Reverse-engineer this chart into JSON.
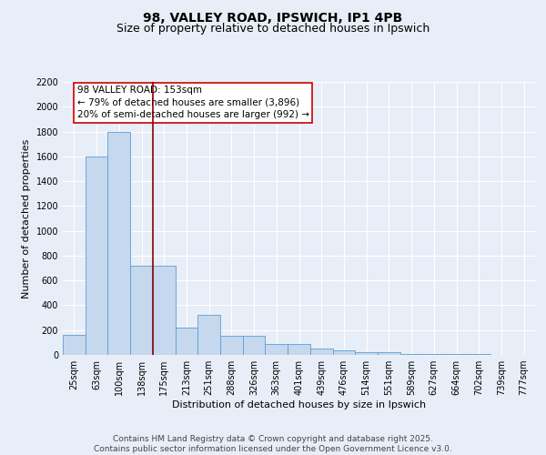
{
  "title_line1": "98, VALLEY ROAD, IPSWICH, IP1 4PB",
  "title_line2": "Size of property relative to detached houses in Ipswich",
  "xlabel": "Distribution of detached houses by size in Ipswich",
  "ylabel": "Number of detached properties",
  "categories": [
    "25sqm",
    "63sqm",
    "100sqm",
    "138sqm",
    "175sqm",
    "213sqm",
    "251sqm",
    "288sqm",
    "326sqm",
    "363sqm",
    "401sqm",
    "439sqm",
    "476sqm",
    "514sqm",
    "551sqm",
    "589sqm",
    "627sqm",
    "664sqm",
    "702sqm",
    "739sqm",
    "777sqm"
  ],
  "values": [
    160,
    1600,
    1800,
    720,
    720,
    220,
    320,
    155,
    155,
    85,
    85,
    50,
    40,
    20,
    20,
    10,
    10,
    5,
    5,
    3,
    3
  ],
  "bar_color": "#c5d8ee",
  "bar_edge_color": "#5a9fd4",
  "vline_color": "#8b0000",
  "annotation_text": "98 VALLEY ROAD: 153sqm\n← 79% of detached houses are smaller (3,896)\n20% of semi-detached houses are larger (992) →",
  "annotation_box_color": "#ffffff",
  "annotation_box_edge": "#cc0000",
  "ylim_max": 2200,
  "yticks": [
    0,
    200,
    400,
    600,
    800,
    1000,
    1200,
    1400,
    1600,
    1800,
    2000,
    2200
  ],
  "background_color": "#e8eef7",
  "plot_bg_color": "#e8eef7",
  "grid_color": "#ffffff",
  "footer_text": "Contains HM Land Registry data © Crown copyright and database right 2025.\nContains public sector information licensed under the Open Government Licence v3.0.",
  "title_fontsize": 10,
  "subtitle_fontsize": 9,
  "axis_label_fontsize": 8,
  "tick_fontsize": 7,
  "annotation_fontsize": 7.5,
  "footer_fontsize": 6.5
}
